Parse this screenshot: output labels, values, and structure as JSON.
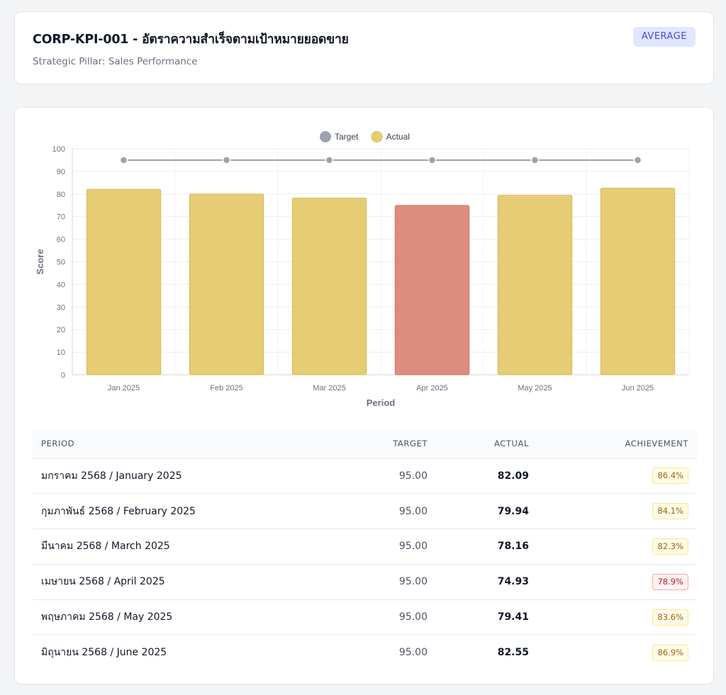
{
  "header": {
    "title": "CORP-KPI-001 - อัตราความสำเร็จตามเป้าหมายยอดขาย",
    "subtitle": "Strategic Pillar: Sales Performance",
    "badge": "AVERAGE"
  },
  "colors": {
    "target": "#9ca3af",
    "actual": "#e5cc75",
    "actual_border": "#d9bb55",
    "below": "#de8b80",
    "below_border": "#d17264"
  },
  "chart_data": {
    "type": "bar",
    "categories": [
      "Jan 2025",
      "Feb 2025",
      "Mar 2025",
      "Apr 2025",
      "May 2025",
      "Jun 2025"
    ],
    "series": [
      {
        "name": "Target",
        "type": "line",
        "values": [
          95,
          95,
          95,
          95,
          95,
          95
        ]
      },
      {
        "name": "Actual",
        "type": "bar",
        "values": [
          82.09,
          79.94,
          78.16,
          74.93,
          79.41,
          82.55
        ]
      }
    ],
    "highlighted_category": "Apr 2025",
    "xlabel": "Period",
    "ylabel": "Score",
    "ylim": [
      0,
      100
    ],
    "yticks": [
      0,
      10,
      20,
      30,
      40,
      50,
      60,
      70,
      80,
      90,
      100
    ],
    "grid": true,
    "legend": "top-center"
  },
  "table": {
    "headers": {
      "period": "PERIOD",
      "target": "TARGET",
      "actual": "ACTUAL",
      "achievement": "ACHIEVEMENT"
    },
    "rows": [
      {
        "period": "มกราคม 2568 / January 2025",
        "target": "95.00",
        "actual": "82.09",
        "achievement": "86.4%",
        "status": "warn"
      },
      {
        "period": "กุมภาพันธ์ 2568 / February 2025",
        "target": "95.00",
        "actual": "79.94",
        "achievement": "84.1%",
        "status": "warn"
      },
      {
        "period": "มีนาคม 2568 / March 2025",
        "target": "95.00",
        "actual": "78.16",
        "achievement": "82.3%",
        "status": "warn"
      },
      {
        "period": "เมษายน 2568 / April 2025",
        "target": "95.00",
        "actual": "74.93",
        "achievement": "78.9%",
        "status": "bad"
      },
      {
        "period": "พฤษภาคม 2568 / May 2025",
        "target": "95.00",
        "actual": "79.41",
        "achievement": "83.6%",
        "status": "warn"
      },
      {
        "period": "มิถุนายน 2568 / June 2025",
        "target": "95.00",
        "actual": "82.55",
        "achievement": "86.9%",
        "status": "warn"
      }
    ]
  }
}
